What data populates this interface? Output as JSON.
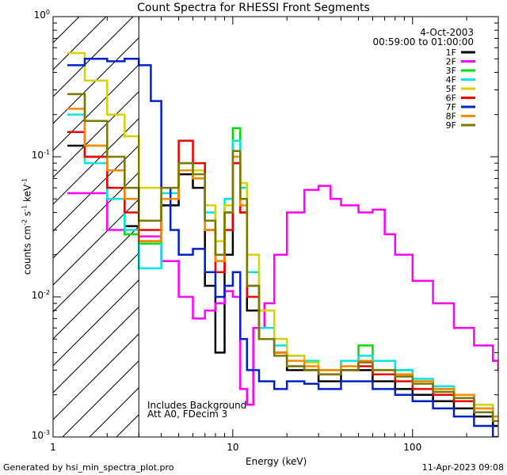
{
  "chart_data": {
    "type": "line",
    "title": "Count Spectra for RHESSI Front Segments",
    "xlabel": "Energy (keV)",
    "ylabel_parts": {
      "a": "counts cm",
      "b": "-2",
      "c": " s",
      "d": "-1",
      "e": " keV",
      "f": "-1"
    },
    "xscale": "log",
    "yscale": "log",
    "xlim": [
      1,
      300
    ],
    "ylim": [
      0.001,
      1
    ],
    "x_ticks": [
      {
        "value": 1,
        "label": "1"
      },
      {
        "value": 10,
        "label": "10"
      },
      {
        "value": 100,
        "label": "100"
      }
    ],
    "y_ticks": [
      {
        "value": 1,
        "base": "10",
        "exp": "0"
      },
      {
        "value": 0.1,
        "base": "10",
        "exp": "-1"
      },
      {
        "value": 0.01,
        "base": "10",
        "exp": "-2"
      },
      {
        "value": 0.001,
        "base": "10",
        "exp": "-3"
      }
    ],
    "date": "4-Oct-2003",
    "time_range": "00:59:00 to 01:00:00",
    "notes": [
      "Includes Background",
      "Att A0, FDecim 3"
    ],
    "shaded_region": [
      1,
      3
    ],
    "legend_position": "top-right",
    "series": [
      {
        "name": "1F",
        "color": "#000000",
        "x": [
          1.2,
          1.5,
          2,
          2.5,
          3,
          4,
          5,
          6,
          7,
          8,
          9,
          10,
          11,
          12,
          14,
          17,
          20,
          25,
          30,
          40,
          50,
          60,
          80,
          100,
          130,
          170,
          220,
          280
        ],
        "y": [
          0.12,
          0.1,
          0.06,
          0.032,
          0.025,
          0.045,
          0.075,
          0.06,
          0.012,
          0.004,
          0.02,
          0.09,
          0.04,
          0.008,
          0.005,
          0.004,
          0.003,
          0.003,
          0.0025,
          0.003,
          0.003,
          0.0025,
          0.0022,
          0.002,
          0.0018,
          0.0016,
          0.0014,
          0.0012
        ]
      },
      {
        "name": "2F",
        "color": "#ff00ff",
        "x": [
          1.2,
          1.5,
          2,
          2.5,
          3,
          4,
          5,
          6,
          7,
          8,
          9,
          10,
          11,
          12,
          13,
          15,
          17,
          20,
          25,
          30,
          35,
          40,
          50,
          60,
          70,
          80,
          100,
          130,
          170,
          220,
          280,
          300
        ],
        "y": [
          0.055,
          0.055,
          0.03,
          0.028,
          0.027,
          0.018,
          0.01,
          0.007,
          0.008,
          0.009,
          0.011,
          0.01,
          0.0022,
          0.0017,
          0.006,
          0.009,
          0.02,
          0.04,
          0.058,
          0.062,
          0.05,
          0.045,
          0.04,
          0.042,
          0.028,
          0.02,
          0.013,
          0.009,
          0.006,
          0.0045,
          0.0035,
          0.003
        ]
      },
      {
        "name": "3F",
        "color": "#00dd00",
        "x": [
          1.2,
          1.5,
          2,
          2.5,
          3,
          4,
          5,
          6,
          7,
          8,
          9,
          10,
          11,
          12,
          14,
          17,
          20,
          25,
          30,
          40,
          50,
          60,
          80,
          100,
          130,
          170,
          220,
          280
        ],
        "y": [
          0.28,
          0.12,
          0.05,
          0.028,
          0.024,
          0.05,
          0.08,
          0.07,
          0.03,
          0.018,
          0.04,
          0.16,
          0.05,
          0.012,
          0.006,
          0.004,
          0.0035,
          0.0035,
          0.003,
          0.0035,
          0.0045,
          0.0035,
          0.003,
          0.0025,
          0.0022,
          0.002,
          0.0016,
          0.0013
        ]
      },
      {
        "name": "4F",
        "color": "#00e5e5",
        "x": [
          1.2,
          1.5,
          2,
          2.5,
          3,
          4,
          5,
          6,
          7,
          8,
          9,
          10,
          11,
          12,
          14,
          17,
          20,
          25,
          30,
          40,
          50,
          60,
          80,
          100,
          130,
          170,
          220,
          280
        ],
        "y": [
          0.2,
          0.09,
          0.05,
          0.03,
          0.016,
          0.055,
          0.09,
          0.08,
          0.04,
          0.02,
          0.05,
          0.13,
          0.06,
          0.015,
          0.006,
          0.0045,
          0.0038,
          0.0035,
          0.003,
          0.0035,
          0.0038,
          0.0035,
          0.003,
          0.0026,
          0.0023,
          0.002,
          0.0017,
          0.0014
        ]
      },
      {
        "name": "5F",
        "color": "#d4d400",
        "x": [
          1.2,
          1.5,
          2,
          2.5,
          3,
          4,
          5,
          6,
          7,
          8,
          9,
          10,
          11,
          12,
          14,
          17,
          20,
          25,
          30,
          40,
          50,
          60,
          80,
          100,
          130,
          170,
          220,
          280
        ],
        "y": [
          0.55,
          0.35,
          0.2,
          0.14,
          0.06,
          0.06,
          0.09,
          0.08,
          0.045,
          0.025,
          0.045,
          0.11,
          0.065,
          0.02,
          0.008,
          0.005,
          0.0038,
          0.0034,
          0.003,
          0.0032,
          0.0035,
          0.003,
          0.0028,
          0.0025,
          0.0022,
          0.002,
          0.0017,
          0.0014
        ]
      },
      {
        "name": "6F",
        "color": "#ee0000",
        "x": [
          1.2,
          1.5,
          2,
          2.5,
          3,
          4,
          5,
          6,
          7,
          8,
          9,
          10,
          11,
          12,
          14,
          17,
          20,
          25,
          30,
          40,
          50,
          60,
          80,
          100,
          130,
          170,
          220,
          280
        ],
        "y": [
          0.15,
          0.1,
          0.06,
          0.04,
          0.03,
          0.05,
          0.13,
          0.09,
          0.03,
          0.015,
          0.03,
          0.09,
          0.04,
          0.01,
          0.005,
          0.004,
          0.0032,
          0.003,
          0.0028,
          0.003,
          0.0032,
          0.0028,
          0.0025,
          0.0022,
          0.002,
          0.0018,
          0.0015,
          0.0013
        ]
      },
      {
        "name": "7F",
        "color": "#0022cc",
        "x": [
          1.2,
          1.5,
          2,
          2.5,
          3,
          3.5,
          4,
          4.5,
          5,
          6,
          7,
          8,
          9,
          10,
          11,
          12,
          14,
          17,
          20,
          25,
          30,
          40,
          50,
          60,
          80,
          100,
          130,
          170,
          220,
          280
        ],
        "y": [
          0.45,
          0.5,
          0.48,
          0.5,
          0.45,
          0.25,
          0.06,
          0.03,
          0.02,
          0.022,
          0.015,
          0.01,
          0.012,
          0.015,
          0.005,
          0.003,
          0.0025,
          0.0022,
          0.0025,
          0.0024,
          0.0022,
          0.0025,
          0.0025,
          0.0022,
          0.002,
          0.0018,
          0.0016,
          0.0014,
          0.0012,
          0.001
        ]
      },
      {
        "name": "8F",
        "color": "#ff8800",
        "x": [
          1.2,
          1.5,
          2,
          2.5,
          3,
          4,
          5,
          6,
          7,
          8,
          9,
          10,
          11,
          12,
          14,
          17,
          20,
          25,
          30,
          40,
          50,
          60,
          80,
          100,
          130,
          170,
          220,
          280
        ],
        "y": [
          0.22,
          0.12,
          0.08,
          0.05,
          0.025,
          0.05,
          0.08,
          0.07,
          0.03,
          0.018,
          0.04,
          0.1,
          0.045,
          0.012,
          0.005,
          0.004,
          0.0035,
          0.0032,
          0.003,
          0.0032,
          0.0035,
          0.003,
          0.0028,
          0.0025,
          0.0022,
          0.002,
          0.0016,
          0.0014
        ]
      },
      {
        "name": "9F",
        "color": "#7a7a00",
        "x": [
          1.2,
          1.5,
          2,
          2.5,
          3,
          4,
          5,
          6,
          7,
          8,
          9,
          10,
          11,
          12,
          14,
          17,
          20,
          25,
          30,
          40,
          50,
          60,
          80,
          100,
          130,
          170,
          220,
          280
        ],
        "y": [
          0.28,
          0.18,
          0.1,
          0.06,
          0.035,
          0.06,
          0.09,
          0.075,
          0.035,
          0.02,
          0.04,
          0.11,
          0.05,
          0.012,
          0.005,
          0.0038,
          0.0032,
          0.003,
          0.0028,
          0.003,
          0.0034,
          0.003,
          0.0027,
          0.0024,
          0.0021,
          0.0019,
          0.0015,
          0.0013
        ]
      }
    ]
  },
  "footer": {
    "left": "Generated by hsi_min_spectra_plot.pro",
    "right": "11-Apr-2023 09:08"
  }
}
